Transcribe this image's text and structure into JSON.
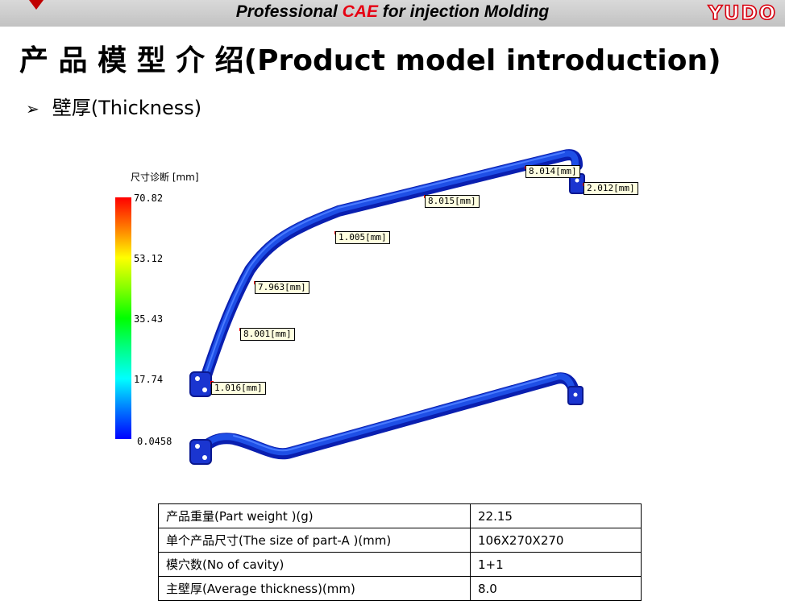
{
  "header": {
    "title_pre": "Professional ",
    "title_accent": "CAE",
    "title_post": " for injection Molding",
    "logo": "YUDO",
    "accent_color": "#e60012",
    "bar_color": "#c8c8c8"
  },
  "page": {
    "title": "产 品 模 型 介 绍(Product model introduction)",
    "bullet_symbol": "➢",
    "bullet_text": "壁厚(Thickness)"
  },
  "legend": {
    "title": "尺寸诊断 [mm]",
    "ticks": [
      "70.82",
      "53.12",
      "35.43",
      "17.74",
      "0.0458"
    ]
  },
  "tags": [
    "8.014[mm]",
    "2.012[mm]",
    "8.015[mm]",
    "1.005[mm]",
    "7.963[mm]",
    "8.001[mm]",
    "1.016[mm]"
  ],
  "spec_table": {
    "rows": [
      {
        "label": "产品重量(Part weight )(g)",
        "value": "22.15"
      },
      {
        "label": "单个产品尺寸(The size of part-A )(mm)",
        "value": "106X270X270"
      },
      {
        "label": "模穴数(No of cavity)",
        "value": "1+1"
      },
      {
        "label": "主壁厚(Average thickness)(mm)",
        "value": "8.0"
      }
    ]
  }
}
